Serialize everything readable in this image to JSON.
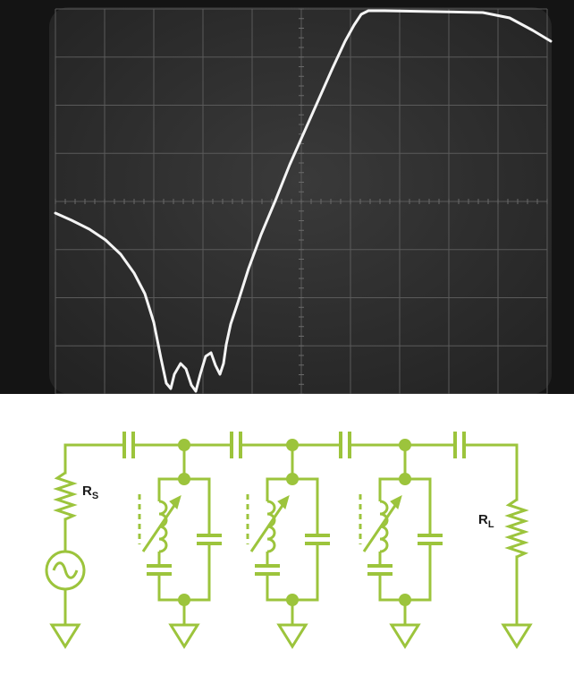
{
  "oscilloscope": {
    "trace_color": "#f4f4f4",
    "screen_color": "#2e2e2e",
    "graticule": {
      "divisions_x": 10,
      "divisions_y": 8
    }
  },
  "schematic": {
    "line_color": "#9cc43c",
    "labels": {
      "source_resistor": "R",
      "source_resistor_sub": "S",
      "load_resistor": "R",
      "load_resistor_sub": "L"
    },
    "resonator_count": 3,
    "coupling_capacitor_count": 4
  }
}
